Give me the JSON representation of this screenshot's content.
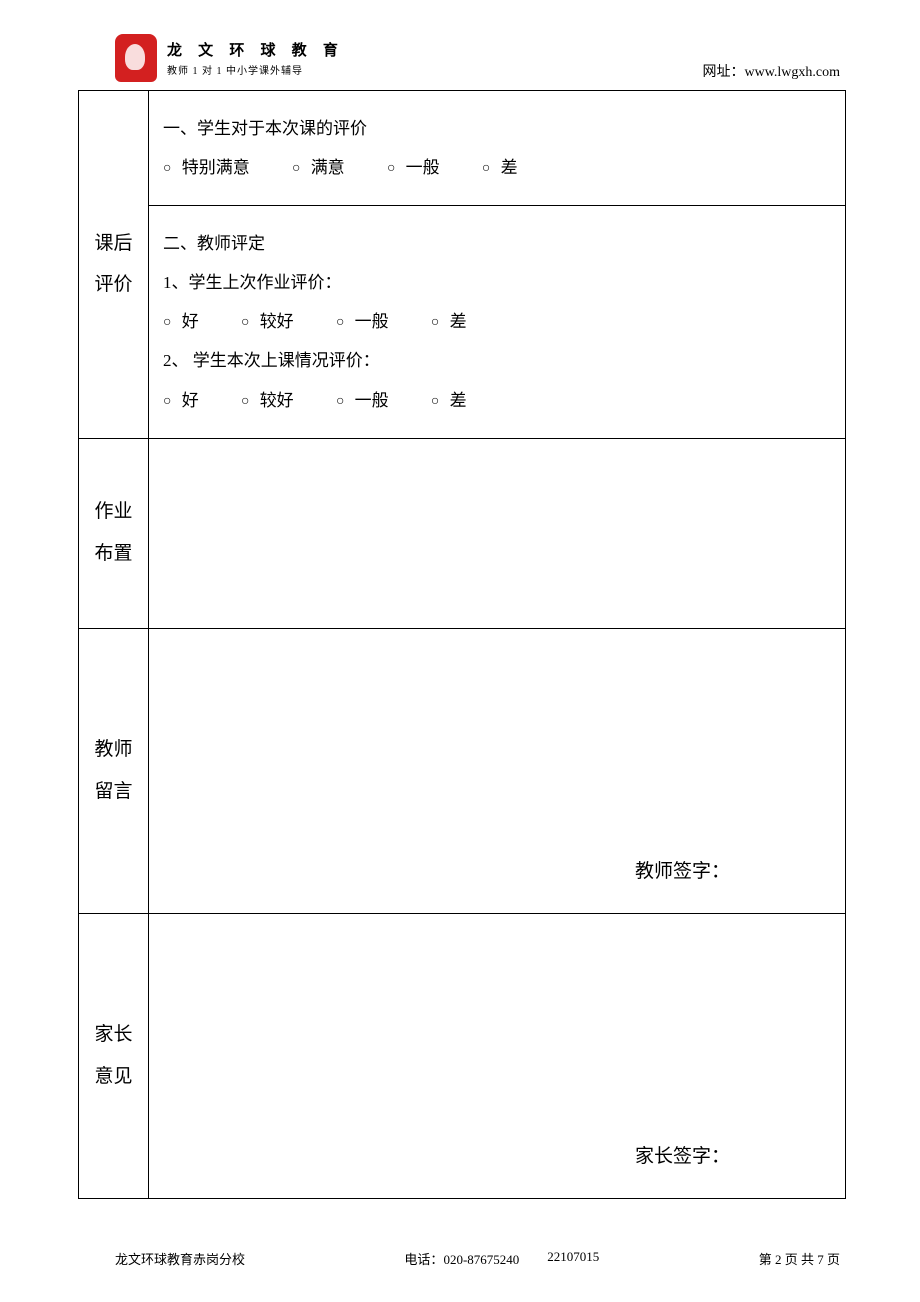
{
  "header": {
    "logo_title": "龙 文 环 球 教 育",
    "logo_subtitle": "教师 1 对 1  中小学课外辅导",
    "website_label": "网址：",
    "website_url": "www.lwgxh.com"
  },
  "sections": {
    "post_eval": {
      "label_line1": "课后",
      "label_line2": "评价",
      "student_eval_title": "一、学生对于本次课的评价",
      "student_options": [
        "特别满意",
        "满意",
        "一般",
        "差"
      ],
      "teacher_eval_title": "二、教师评定",
      "homework_eval_label": "1、学生上次作业评价：",
      "homework_options": [
        "好",
        "较好",
        "一般",
        "差"
      ],
      "class_eval_label": "2、 学生本次上课情况评价：",
      "class_options": [
        "好",
        "较好",
        "一般",
        "差"
      ]
    },
    "homework": {
      "label_line1": "作业",
      "label_line2": "布置"
    },
    "teacher_note": {
      "label_line1": "教师",
      "label_line2": "留言",
      "signature": "教师签字："
    },
    "parent_note": {
      "label_line1": "家长",
      "label_line2": "意见",
      "signature": "家长签字："
    }
  },
  "footer": {
    "school": "龙文环球教育赤岗分校",
    "phone_label": "电话：",
    "phone1": "020-87675240",
    "phone2": "22107015",
    "page_prefix": "第 ",
    "page_current": "2",
    "page_mid": " 页 共 ",
    "page_total": "7",
    "page_suffix": " 页"
  },
  "styling": {
    "border_color": "#000000",
    "background_color": "#ffffff",
    "logo_color": "#d32020",
    "text_color": "#000000",
    "label_fontsize": 19,
    "content_fontsize": 17,
    "footer_fontsize": 13
  }
}
